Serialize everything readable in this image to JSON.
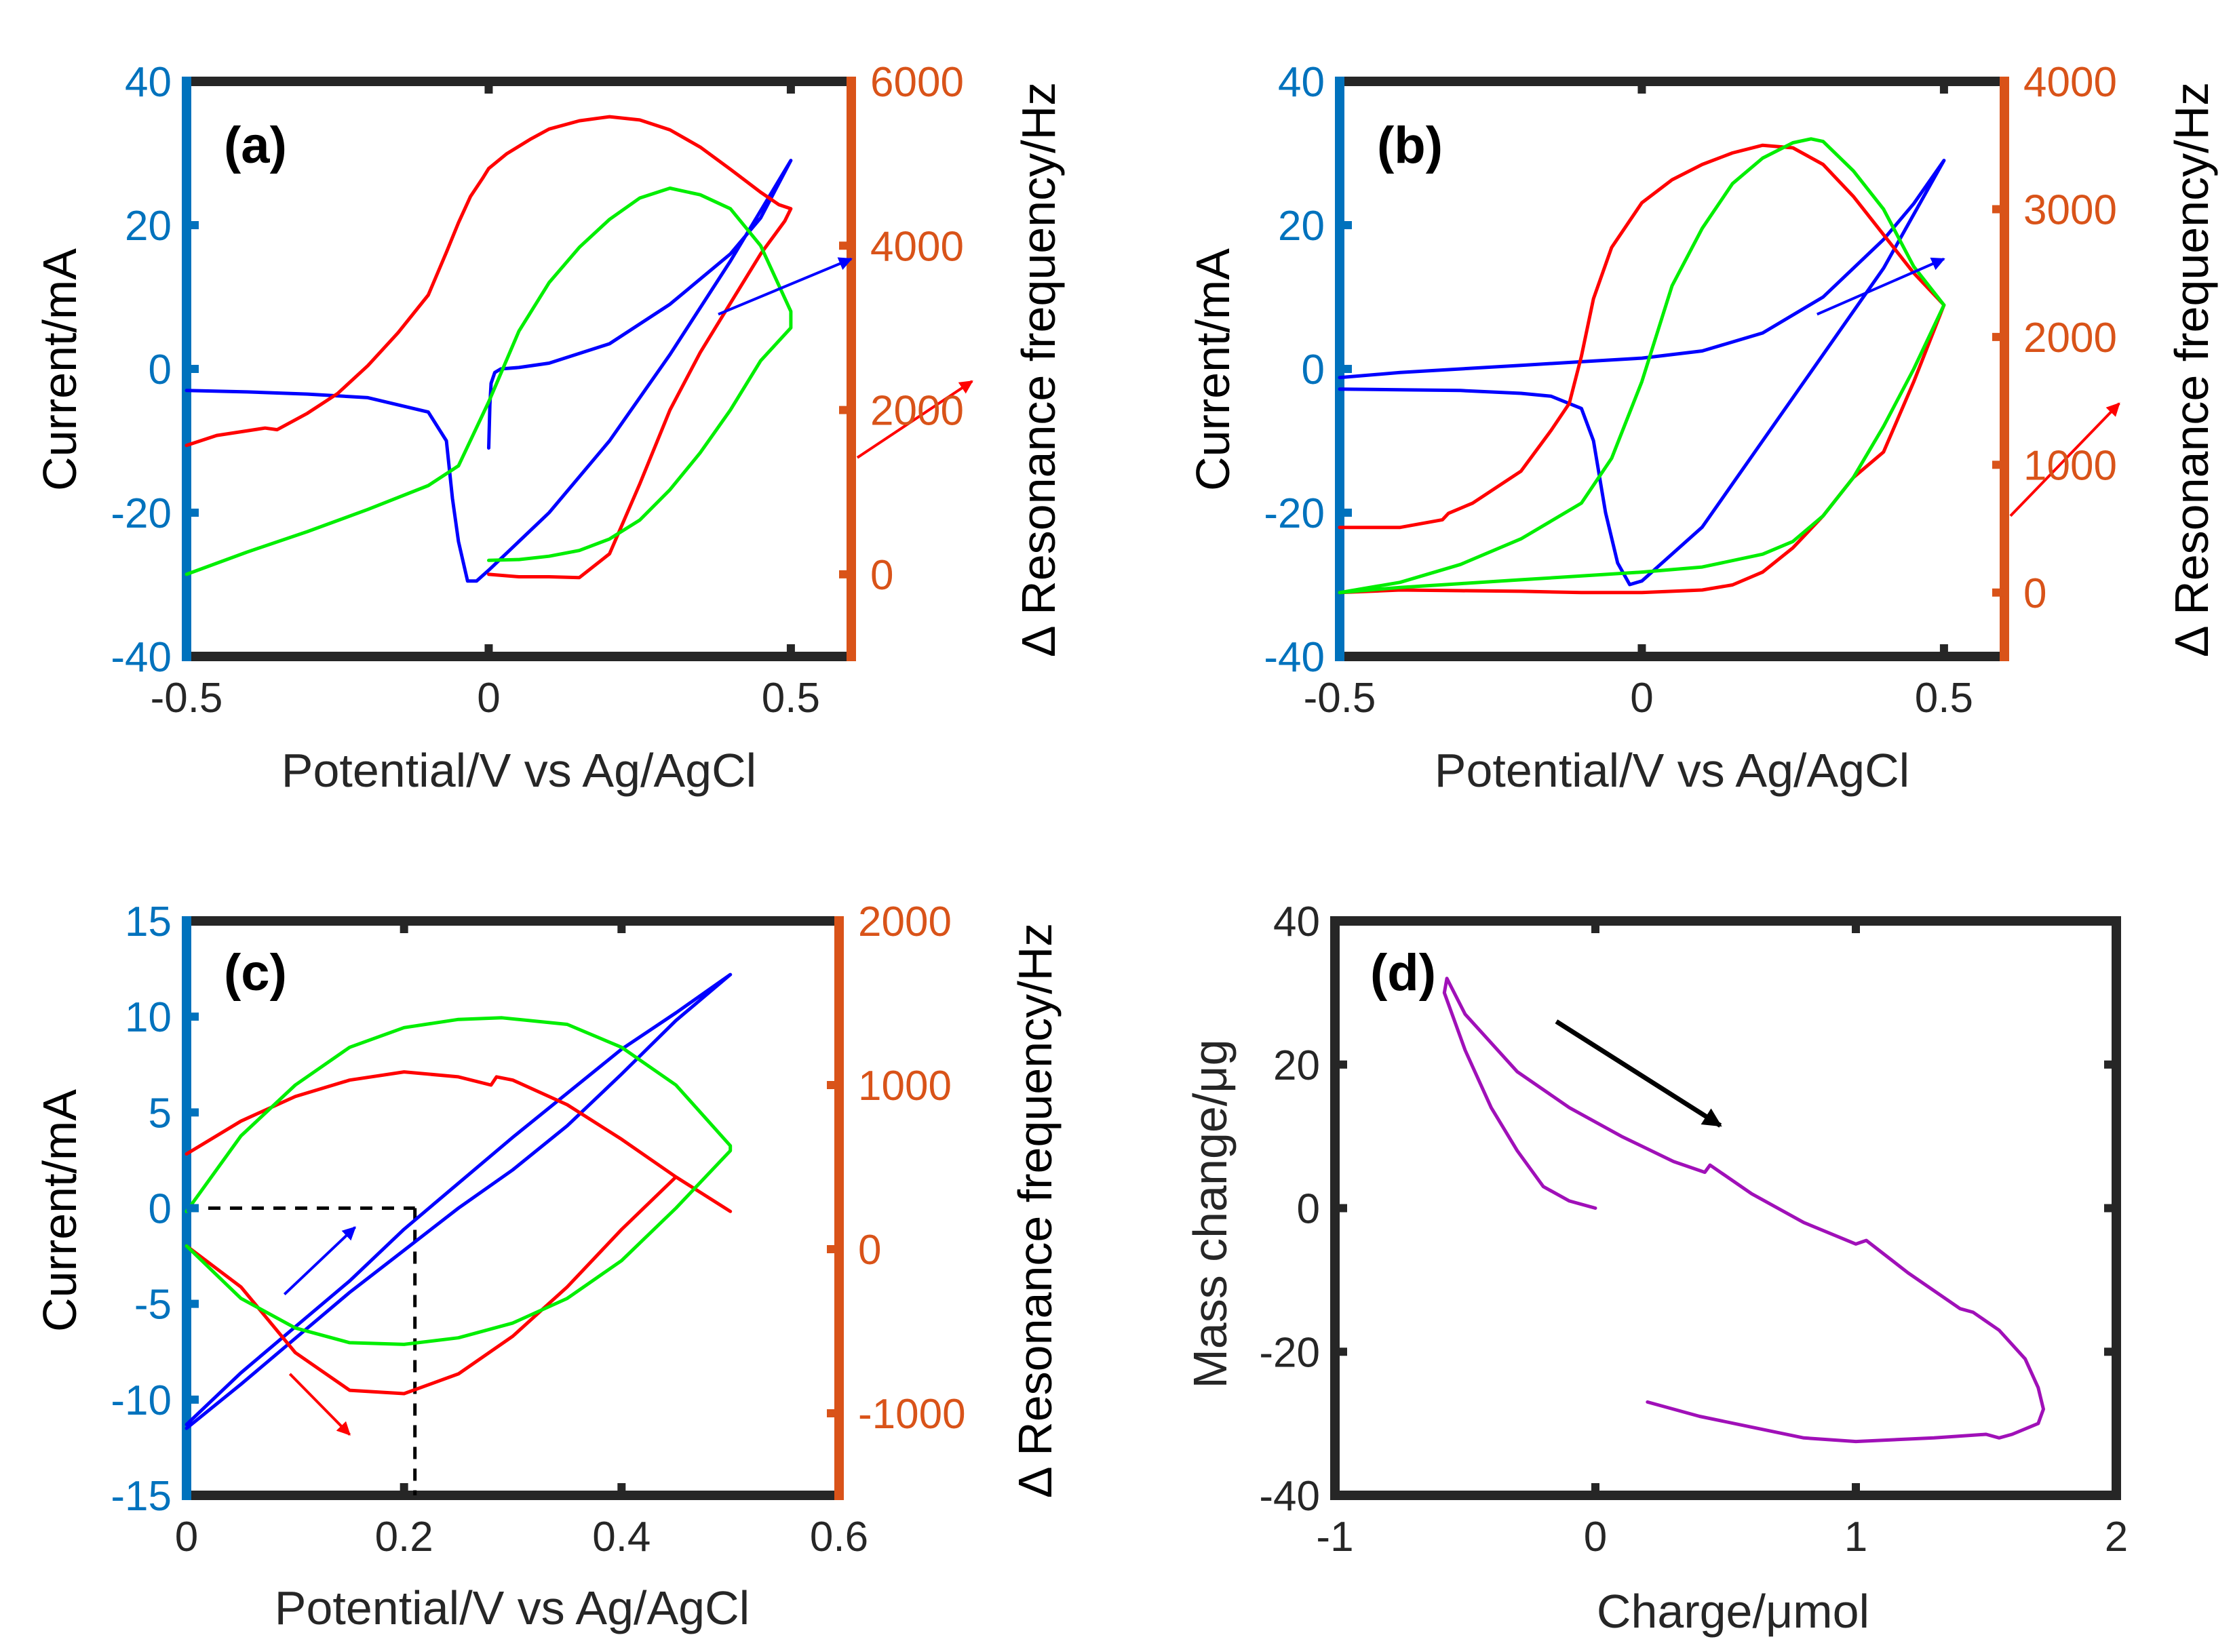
{
  "figure": {
    "colors": {
      "current_axis": "#0072BD",
      "frequency_axis": "#D95319",
      "frame": "#262626",
      "blue": "#0000FF",
      "red": "#FF0000",
      "green": "#00EE00",
      "purple": "#A010B8",
      "black": "#000000"
    }
  },
  "chart_data": [
    {
      "id": "a",
      "type": "line",
      "panel_label": "(a)",
      "xlabel": "Potential/V vs Ag/AgCl",
      "ylabel": "Current/mA",
      "ylabel_right": "Δ Resonance frequency/Hz",
      "xlim": [
        -0.5,
        0.6
      ],
      "ylim": [
        -40,
        40
      ],
      "ylim_right": [
        -1000,
        6000
      ],
      "x_ticks": [
        -0.5,
        0,
        0.5
      ],
      "x_tick_labels": [
        "-0.5",
        "0",
        "0.5"
      ],
      "y_ticks": [
        -40,
        -20,
        0,
        20,
        40
      ],
      "y_tick_labels": [
        "-40",
        "-20",
        "0",
        "20",
        "40"
      ],
      "y_right_ticks": [
        0,
        2000,
        4000,
        6000
      ],
      "y_right_tick_labels": [
        "0",
        "2000",
        "4000",
        "6000"
      ],
      "series": [
        {
          "name": "current",
          "color": "blue",
          "axis": "left",
          "x": [
            0.0,
            0.002,
            0.004,
            0.01,
            0.02,
            0.05,
            0.1,
            0.2,
            0.3,
            0.4,
            0.45,
            0.5,
            0.4,
            0.3,
            0.2,
            0.1,
            0.0,
            -0.02,
            -0.035,
            -0.05,
            -0.06,
            -0.07,
            -0.1,
            -0.2,
            -0.3,
            -0.4,
            -0.5
          ],
          "y": [
            -11,
            -5,
            -2,
            -0.5,
            0,
            0.2,
            0.8,
            3.5,
            9,
            16,
            21,
            29,
            15,
            2,
            -10,
            -20,
            -28,
            -29.5,
            -29.5,
            -24,
            -18,
            -10,
            -6,
            -4,
            -3.5,
            -3.2,
            -3.0
          ]
        },
        {
          "name": "frequency",
          "color": "red",
          "axis": "right",
          "x": [
            -0.5,
            -0.45,
            -0.37,
            -0.35,
            -0.3,
            -0.25,
            -0.2,
            -0.15,
            -0.1,
            -0.07,
            -0.05,
            -0.03,
            -0.01,
            0.0,
            0.03,
            0.07,
            0.1,
            0.15,
            0.2,
            0.25,
            0.3,
            0.35,
            0.4,
            0.45,
            0.48,
            0.5,
            0.49,
            0.45,
            0.4,
            0.35,
            0.3,
            0.25,
            0.2,
            0.15,
            0.1,
            0.05,
            0.0
          ],
          "y": [
            1570,
            1690,
            1780,
            1760,
            1960,
            2200,
            2540,
            2940,
            3400,
            3920,
            4280,
            4600,
            4820,
            4940,
            5120,
            5300,
            5420,
            5520,
            5570,
            5530,
            5410,
            5200,
            4930,
            4650,
            4500,
            4450,
            4300,
            3900,
            3300,
            2700,
            2000,
            1100,
            250,
            -40,
            -30,
            -30,
            0
          ]
        },
        {
          "name": "frequency",
          "color": "green",
          "axis": "right",
          "x": [
            -0.5,
            -0.4,
            -0.3,
            -0.2,
            -0.1,
            -0.05,
            0.0,
            0.05,
            0.1,
            0.15,
            0.2,
            0.25,
            0.3,
            0.35,
            0.4,
            0.45,
            0.5,
            0.5,
            0.45,
            0.4,
            0.35,
            0.3,
            0.25,
            0.2,
            0.15,
            0.1,
            0.05,
            0.0
          ],
          "y": [
            0,
            270,
            520,
            790,
            1080,
            1320,
            2100,
            2960,
            3550,
            3980,
            4320,
            4580,
            4700,
            4620,
            4450,
            4000,
            3200,
            3000,
            2600,
            2000,
            1480,
            1030,
            660,
            430,
            290,
            220,
            180,
            170
          ]
        }
      ],
      "arrows": [
        {
          "color": "blue",
          "from": [
            0.38,
            7.6
          ],
          "to": [
            0.6,
            15.3
          ]
        },
        {
          "color": "red",
          "from": [
            0.61,
            1420
          ],
          "to": [
            0.8,
            2350
          ]
        }
      ]
    },
    {
      "id": "b",
      "type": "line",
      "panel_label": "(b)",
      "xlabel": "Potential/V vs Ag/AgCl",
      "ylabel": "Current/mA",
      "ylabel_right": "Δ Resonance frequency/Hz",
      "xlim": [
        -0.5,
        0.6
      ],
      "ylim": [
        -40,
        40
      ],
      "ylim_right": [
        -500,
        4000
      ],
      "x_ticks": [
        -0.5,
        0,
        0.5
      ],
      "x_tick_labels": [
        "-0.5",
        "0",
        "0.5"
      ],
      "y_ticks": [
        -40,
        -20,
        0,
        20,
        40
      ],
      "y_tick_labels": [
        "-40",
        "-20",
        "0",
        "20",
        "40"
      ],
      "y_right_ticks": [
        0,
        1000,
        2000,
        3000,
        4000
      ],
      "y_right_tick_labels": [
        "0",
        "1000",
        "2000",
        "3000",
        "4000"
      ],
      "series": [
        {
          "name": "current",
          "color": "blue",
          "axis": "left",
          "x": [
            -0.5,
            -0.4,
            -0.2,
            -0.1,
            0.0,
            0.1,
            0.2,
            0.3,
            0.4,
            0.45,
            0.5,
            0.4,
            0.3,
            0.2,
            0.1,
            0.0,
            -0.02,
            -0.04,
            -0.06,
            -0.08,
            -0.1,
            -0.15,
            -0.2,
            -0.3,
            -0.4,
            -0.5
          ],
          "y": [
            -1.2,
            -0.5,
            0.5,
            1,
            1.5,
            2.5,
            5,
            10,
            18,
            23,
            29,
            14,
            2,
            -10,
            -22,
            -29.5,
            -30,
            -27,
            -20,
            -10,
            -5.5,
            -3.8,
            -3.4,
            -3.0,
            -2.9,
            -2.8
          ]
        },
        {
          "name": "frequency",
          "color": "red",
          "axis": "right",
          "x": [
            -0.5,
            -0.4,
            -0.33,
            -0.32,
            -0.28,
            -0.2,
            -0.15,
            -0.12,
            -0.1,
            -0.08,
            -0.05,
            0.0,
            0.05,
            0.1,
            0.15,
            0.2,
            0.25,
            0.3,
            0.35,
            0.4,
            0.45,
            0.5,
            0.45,
            0.4,
            0.35,
            0.3,
            0.25,
            0.2,
            0.15,
            0.1,
            0.0,
            -0.1,
            -0.2,
            -0.3,
            -0.4,
            -0.5
          ],
          "y": [
            510,
            510,
            570,
            620,
            700,
            950,
            1270,
            1480,
            1850,
            2300,
            2700,
            3050,
            3230,
            3350,
            3440,
            3500,
            3480,
            3350,
            3100,
            2800,
            2500,
            2250,
            1650,
            1100,
            900,
            600,
            350,
            160,
            60,
            20,
            0,
            0,
            10,
            15,
            20,
            0
          ]
        },
        {
          "name": "frequency",
          "color": "green",
          "axis": "right",
          "x": [
            -0.5,
            -0.4,
            -0.3,
            -0.2,
            -0.1,
            -0.05,
            0.0,
            0.05,
            0.1,
            0.15,
            0.2,
            0.25,
            0.28,
            0.3,
            0.35,
            0.4,
            0.45,
            0.5,
            0.45,
            0.4,
            0.35,
            0.3,
            0.25,
            0.2,
            0.1,
            0.0,
            -0.1,
            -0.2,
            -0.3,
            -0.4,
            -0.5
          ],
          "y": [
            0,
            80,
            220,
            420,
            700,
            1050,
            1650,
            2400,
            2850,
            3200,
            3400,
            3520,
            3550,
            3530,
            3300,
            3000,
            2550,
            2250,
            1750,
            1300,
            900,
            600,
            400,
            300,
            200,
            160,
            130,
            100,
            70,
            40,
            0
          ]
        }
      ],
      "arrows": [
        {
          "color": "blue",
          "from": [
            0.29,
            7.6
          ],
          "to": [
            0.5,
            15.3
          ]
        },
        {
          "color": "red",
          "from": [
            0.61,
            600
          ],
          "to": [
            0.79,
            1480
          ]
        }
      ]
    },
    {
      "id": "c",
      "type": "line",
      "panel_label": "(c)",
      "xlabel": "Potential/V vs Ag/AgCl",
      "ylabel": "Current/mA",
      "ylabel_right": "Δ Resonance frequency/Hz",
      "xlim": [
        0,
        0.6
      ],
      "ylim": [
        -15,
        15
      ],
      "ylim_right": [
        -1500,
        2000
      ],
      "x_ticks": [
        0,
        0.2,
        0.4,
        0.6
      ],
      "x_tick_labels": [
        "0",
        "0.2",
        "0.4",
        "0.6"
      ],
      "y_ticks": [
        -15,
        -10,
        -5,
        0,
        5,
        10,
        15
      ],
      "y_tick_labels": [
        "-15",
        "-10",
        "-5",
        "0",
        "5",
        "10",
        "15"
      ],
      "y_right_ticks": [
        -1000,
        0,
        1000,
        2000
      ],
      "y_right_tick_labels": [
        "-1000",
        "0",
        "1000",
        "2000"
      ],
      "series": [
        {
          "name": "current",
          "color": "blue",
          "axis": "left",
          "x": [
            0.0,
            0.05,
            0.1,
            0.15,
            0.2,
            0.25,
            0.3,
            0.35,
            0.4,
            0.45,
            0.5,
            0.45,
            0.4,
            0.35,
            0.3,
            0.25,
            0.2,
            0.15,
            0.1,
            0.05,
            0.0
          ],
          "y": [
            -11.3,
            -8.6,
            -6.2,
            -3.8,
            -1.1,
            1.3,
            3.7,
            6.0,
            8.3,
            10.2,
            12.2,
            9.8,
            7.0,
            4.3,
            2.0,
            0.0,
            -2.2,
            -4.4,
            -6.8,
            -9.2,
            -11.5
          ]
        },
        {
          "name": "frequency",
          "color": "red",
          "axis": "right",
          "x": [
            0.0,
            0.05,
            0.1,
            0.15,
            0.2,
            0.25,
            0.28,
            0.285,
            0.3,
            0.35,
            0.4,
            0.45,
            0.5,
            0.45,
            0.4,
            0.35,
            0.3,
            0.25,
            0.2,
            0.15,
            0.1,
            0.05,
            0.0
          ],
          "y": [
            580,
            780,
            930,
            1030,
            1080,
            1050,
            1000,
            1050,
            1030,
            880,
            670,
            440,
            230,
            440,
            120,
            -230,
            -530,
            -760,
            -880,
            -860,
            -630,
            -230,
            20
          ]
        },
        {
          "name": "frequency",
          "color": "green",
          "axis": "right",
          "x": [
            0.0,
            0.05,
            0.1,
            0.15,
            0.2,
            0.25,
            0.29,
            0.35,
            0.4,
            0.45,
            0.5,
            0.5,
            0.45,
            0.4,
            0.35,
            0.3,
            0.25,
            0.2,
            0.15,
            0.1,
            0.05,
            0.0
          ],
          "y": [
            230,
            690,
            1000,
            1230,
            1350,
            1400,
            1410,
            1370,
            1230,
            1000,
            630,
            600,
            250,
            -70,
            -300,
            -450,
            -540,
            -580,
            -570,
            -480,
            -300,
            20
          ]
        }
      ],
      "dashed_guides": {
        "x_value": 0.21,
        "y_value": 0,
        "y_bottom": -15
      },
      "arrows": [
        {
          "color": "blue",
          "from": [
            0.09,
            -4.5
          ],
          "to": [
            0.155,
            -1.0
          ]
        },
        {
          "color": "red",
          "from": [
            0.095,
            -760
          ],
          "to": [
            0.15,
            -1130
          ]
        }
      ]
    },
    {
      "id": "d",
      "type": "line",
      "panel_label": "(d)",
      "xlabel": "Charge/μmol",
      "ylabel": "Mass change/μg",
      "xlim": [
        -1,
        2
      ],
      "ylim": [
        -40,
        40
      ],
      "x_ticks": [
        -1,
        0,
        1,
        2
      ],
      "x_tick_labels": [
        "-1",
        "0",
        "1",
        "2"
      ],
      "y_ticks": [
        -40,
        -20,
        0,
        20,
        40
      ],
      "y_tick_labels": [
        "-40",
        "-20",
        "0",
        "20",
        "40"
      ],
      "series": [
        {
          "name": "mass",
          "color": "purple",
          "axis": "left",
          "x": [
            0.0,
            -0.1,
            -0.2,
            -0.3,
            -0.4,
            -0.5,
            -0.55,
            -0.58,
            -0.57,
            -0.5,
            -0.3,
            -0.1,
            0.1,
            0.3,
            0.42,
            0.44,
            0.6,
            0.8,
            1.0,
            1.04,
            1.2,
            1.4,
            1.45,
            1.55,
            1.65,
            1.7,
            1.72,
            1.7,
            1.6,
            1.55,
            1.5,
            1.3,
            1.0,
            0.8,
            0.6,
            0.4,
            0.2
          ],
          "y": [
            0,
            1,
            3,
            8,
            14,
            22,
            27,
            30,
            32,
            27,
            19,
            14,
            10,
            6.5,
            5,
            6,
            2,
            -2,
            -5,
            -4.5,
            -9,
            -14,
            -14.5,
            -17,
            -21,
            -25,
            -28,
            -30,
            -31.5,
            -32,
            -31.5,
            -32,
            -32.5,
            -32,
            -30.5,
            -29,
            -27
          ]
        }
      ],
      "arrows": [
        {
          "color": "black",
          "from": [
            -0.15,
            26
          ],
          "to": [
            0.48,
            11.5
          ]
        }
      ]
    }
  ]
}
